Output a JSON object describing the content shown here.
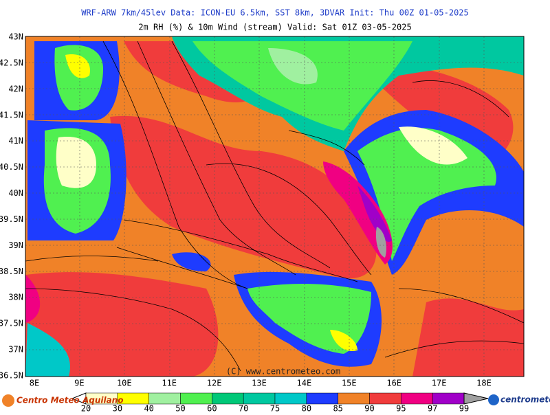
{
  "header": {
    "title": "WRF-ARW 7km/45lev   Data: ICON-EU 6.5km, SST 8km, 3DVAR   Init: Thu 00Z 01-05-2025",
    "subtitle": "2m RH (%) & 10m Wind (stream)   Valid: Sat 01Z 03-05-2025"
  },
  "map": {
    "lat_labels": [
      "43N",
      "42.5N",
      "42N",
      "41.5N",
      "41N",
      "40.5N",
      "40N",
      "39.5N",
      "39N",
      "38.5N",
      "38N",
      "37.5N",
      "37N",
      "36.5N"
    ],
    "lon_labels": [
      "8E",
      "9E",
      "10E",
      "11E",
      "12E",
      "13E",
      "14E",
      "15E",
      "16E",
      "17E",
      "18E"
    ],
    "watermark": "(C) www.centrometeo.com"
  },
  "colorbar": {
    "labels": [
      20,
      30,
      40,
      50,
      60,
      70,
      75,
      80,
      85,
      90,
      95,
      97,
      99
    ],
    "colors": [
      "#ffffc8",
      "#ffff00",
      "#a0f0a0",
      "#50f050",
      "#00c878",
      "#00c8a0",
      "#00c8c8",
      "#1e3cff",
      "#f08228",
      "#f03c3c",
      "#f00082",
      "#a000c8"
    ]
  },
  "footer": {
    "left_logo": "Centro Meteo Aquilano",
    "right_logo": "centrometeo"
  }
}
